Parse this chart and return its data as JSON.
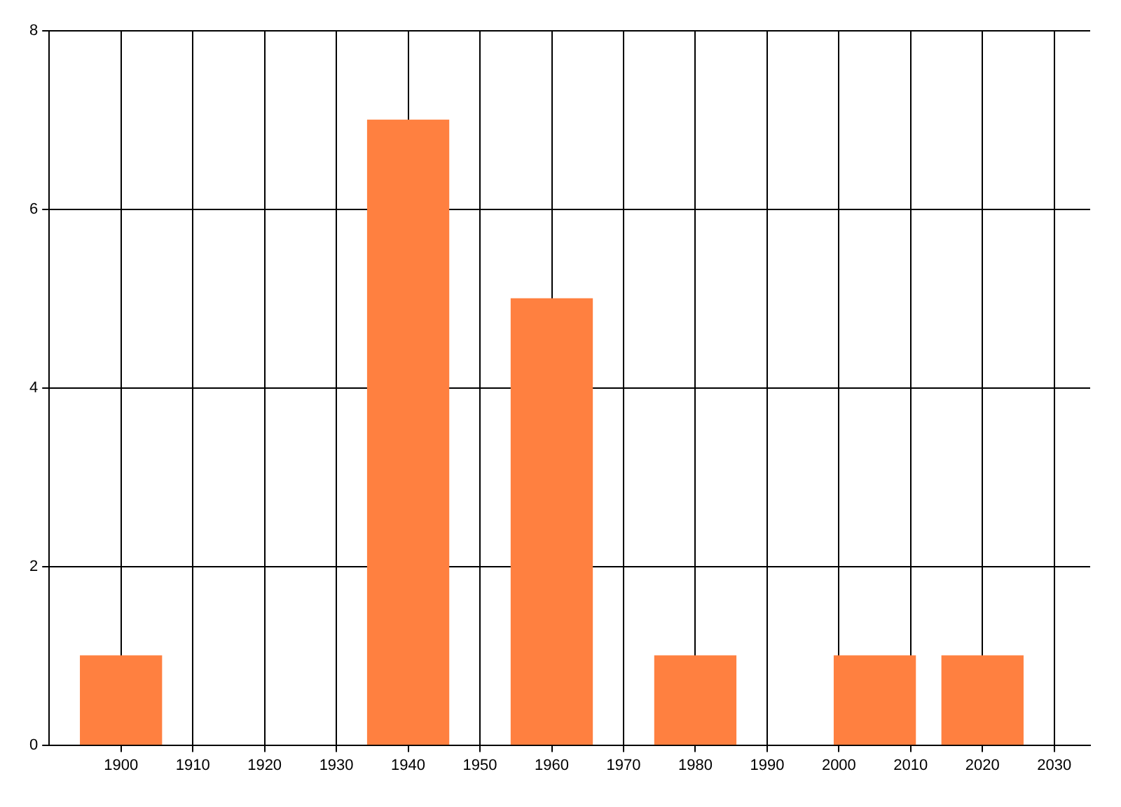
{
  "chart_data": {
    "type": "bar",
    "x": [
      1900,
      1940,
      1960,
      1980,
      2005,
      2020
    ],
    "values": [
      1,
      7,
      5,
      1,
      1,
      1
    ],
    "color": "#ff8040",
    "xlim": [
      1890,
      2035
    ],
    "xticks": [
      1900,
      1910,
      1920,
      1930,
      1940,
      1950,
      1960,
      1970,
      1980,
      1990,
      2000,
      2010,
      2020,
      2030
    ],
    "ylim": [
      0,
      8
    ],
    "yticks": [
      0,
      2,
      4,
      6,
      8
    ],
    "grid": true
  }
}
